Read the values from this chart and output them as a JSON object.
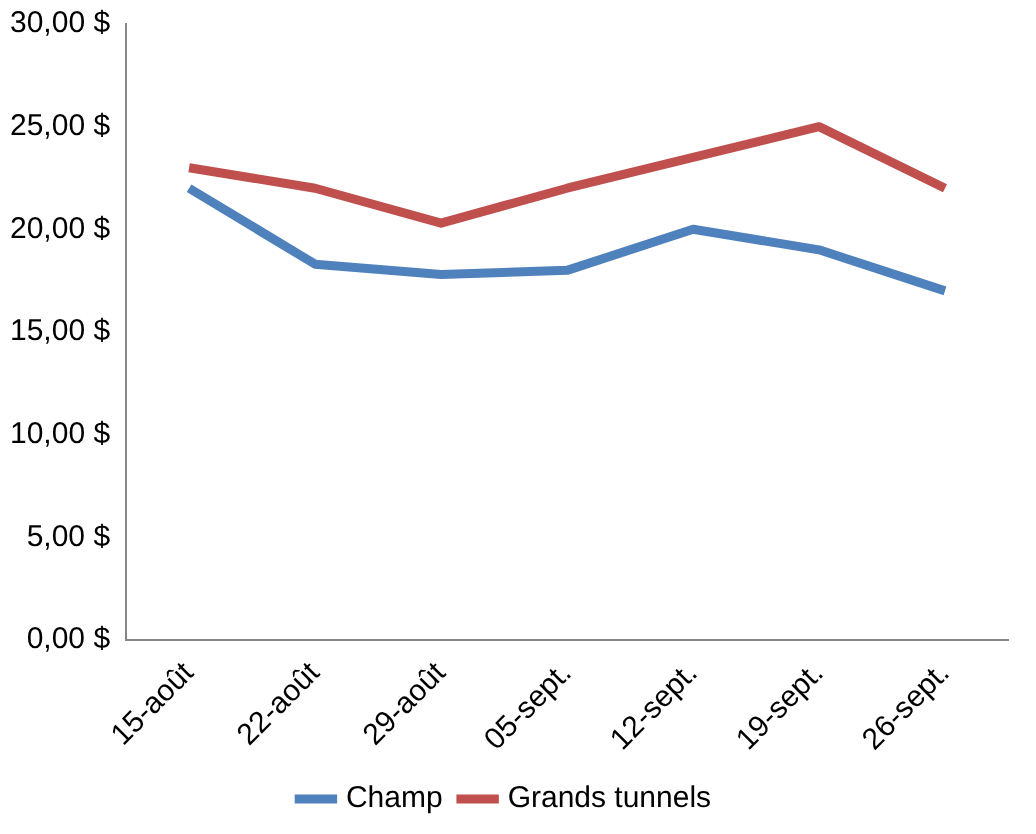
{
  "chart_data": {
    "type": "line",
    "categories": [
      "15-août",
      "22-août",
      "29-août",
      "05-sept.",
      "12-sept.",
      "19-sept.",
      "26-sept."
    ],
    "series": [
      {
        "name": "Champ",
        "color": "#4f81bd",
        "values": [
          22,
          18.3,
          17.8,
          18,
          20,
          19,
          17
        ]
      },
      {
        "name": "Grands tunnels",
        "color": "#c0504d",
        "values": [
          23,
          22,
          20.3,
          22,
          23.5,
          25,
          22
        ]
      }
    ],
    "ylim": [
      0,
      30
    ],
    "yticks": [
      {
        "value": 0,
        "label": "0,00 $"
      },
      {
        "value": 5,
        "label": "5,00 $"
      },
      {
        "value": 10,
        "label": "10,00 $"
      },
      {
        "value": 15,
        "label": "15,00 $"
      },
      {
        "value": 20,
        "label": "20,00 $"
      },
      {
        "value": 25,
        "label": "25,00 $"
      },
      {
        "value": 30,
        "label": "30,00 $"
      }
    ],
    "grid": false,
    "legend": "bottom",
    "marker": "none",
    "line_style": "solid"
  }
}
